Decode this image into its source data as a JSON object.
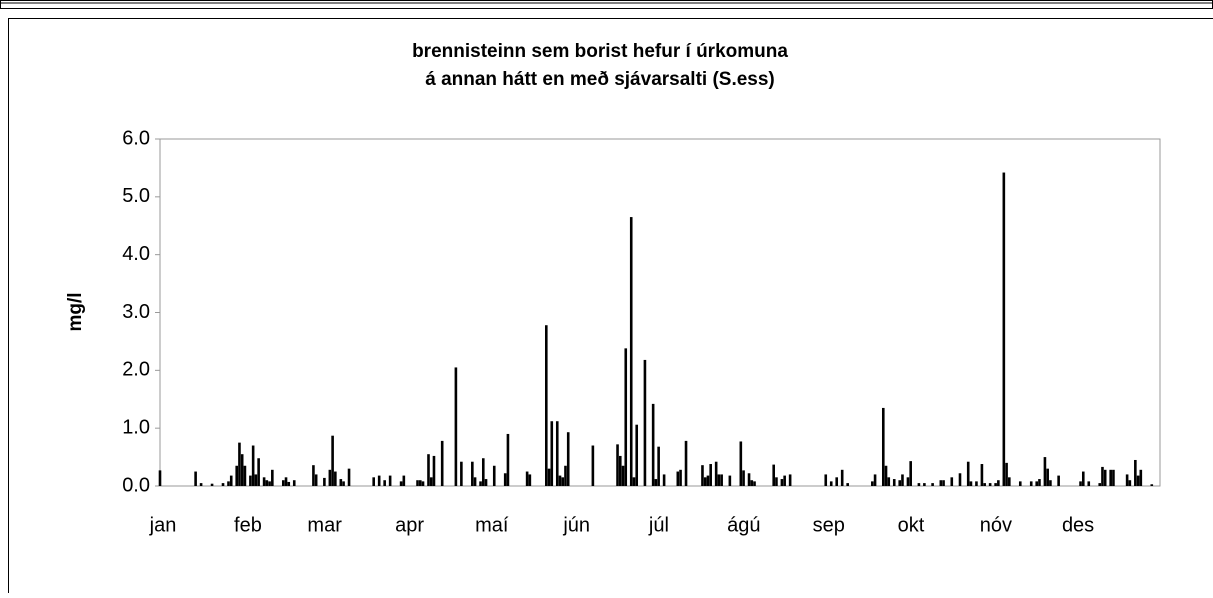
{
  "chart_data": {
    "type": "bar",
    "title": [
      "brennisteinn sem borist hefur í úrkomuna",
      "á annan hátt en með sjávarsalti (S.ess)"
    ],
    "y_label": "mg/l",
    "color": "#000000",
    "x": [
      0,
      13,
      15,
      19,
      23,
      25,
      26,
      28,
      29,
      30,
      31,
      33,
      34,
      35,
      36,
      38,
      39,
      40,
      41,
      45,
      46,
      47,
      49,
      56,
      57,
      60,
      62,
      63,
      64,
      66,
      67,
      69,
      78,
      80,
      82,
      84,
      88,
      89,
      94,
      95,
      96,
      98,
      99,
      100,
      103,
      108,
      110,
      114,
      115,
      117,
      118,
      119,
      122,
      126,
      127,
      134,
      135,
      141,
      142,
      143,
      145,
      146,
      147,
      148,
      149,
      158,
      167,
      168,
      169,
      170,
      172,
      173,
      174,
      177,
      180,
      181,
      182,
      184,
      189,
      190,
      192,
      198,
      199,
      200,
      201,
      203,
      204,
      205,
      208,
      212,
      213,
      215,
      216,
      217,
      224,
      225,
      227,
      228,
      230,
      243,
      245,
      247,
      249,
      251,
      260,
      261,
      264,
      265,
      266,
      268,
      270,
      271,
      273,
      274,
      277,
      279,
      282,
      285,
      286,
      289,
      292,
      295,
      296,
      298,
      300,
      301,
      303,
      305,
      306,
      308,
      309,
      310,
      314,
      318,
      320,
      321,
      323,
      324,
      325,
      328,
      336,
      337,
      339,
      343,
      344,
      345,
      347,
      348,
      353,
      354,
      356,
      357,
      358,
      362
    ],
    "values": [
      0.27,
      0.25,
      0.05,
      0.04,
      0.05,
      0.08,
      0.18,
      0.35,
      0.75,
      0.55,
      0.35,
      0.18,
      0.7,
      0.2,
      0.48,
      0.15,
      0.1,
      0.08,
      0.28,
      0.1,
      0.15,
      0.07,
      0.1,
      0.36,
      0.2,
      0.14,
      0.28,
      0.87,
      0.25,
      0.12,
      0.08,
      0.3,
      0.15,
      0.18,
      0.1,
      0.18,
      0.08,
      0.18,
      0.1,
      0.1,
      0.08,
      0.55,
      0.15,
      0.52,
      0.78,
      2.05,
      0.42,
      0.42,
      0.15,
      0.08,
      0.48,
      0.12,
      0.35,
      0.22,
      0.9,
      0.25,
      0.2,
      2.78,
      0.3,
      1.12,
      1.12,
      0.18,
      0.15,
      0.35,
      0.93,
      0.7,
      0.72,
      0.52,
      0.35,
      2.38,
      4.65,
      0.15,
      1.06,
      2.18,
      1.42,
      0.12,
      0.68,
      0.2,
      0.25,
      0.28,
      0.78,
      0.36,
      0.15,
      0.18,
      0.38,
      0.42,
      0.2,
      0.2,
      0.18,
      0.77,
      0.27,
      0.22,
      0.1,
      0.08,
      0.37,
      0.15,
      0.12,
      0.18,
      0.2,
      0.2,
      0.08,
      0.15,
      0.28,
      0.05,
      0.08,
      0.2,
      1.35,
      0.35,
      0.15,
      0.12,
      0.1,
      0.2,
      0.15,
      0.43,
      0.05,
      0.05,
      0.05,
      0.1,
      0.1,
      0.15,
      0.22,
      0.42,
      0.08,
      0.08,
      0.38,
      0.05,
      0.05,
      0.05,
      0.1,
      5.42,
      0.4,
      0.15,
      0.08,
      0.08,
      0.08,
      0.12,
      0.5,
      0.3,
      0.1,
      0.18,
      0.08,
      0.25,
      0.08,
      0.05,
      0.33,
      0.28,
      0.28,
      0.28,
      0.2,
      0.1,
      0.45,
      0.18,
      0.28,
      0.03
    ],
    "xlim": [
      0,
      365
    ],
    "xticks": [
      {
        "value": 0,
        "label": "jan"
      },
      {
        "value": 31,
        "label": "feb"
      },
      {
        "value": 59,
        "label": "mar"
      },
      {
        "value": 90,
        "label": "apr"
      },
      {
        "value": 120,
        "label": "maí"
      },
      {
        "value": 151,
        "label": "jún"
      },
      {
        "value": 181,
        "label": "júl"
      },
      {
        "value": 212,
        "label": "ágú"
      },
      {
        "value": 243,
        "label": "sep"
      },
      {
        "value": 273,
        "label": "okt"
      },
      {
        "value": 304,
        "label": "nóv"
      },
      {
        "value": 334,
        "label": "des"
      }
    ],
    "ylim": [
      0,
      6
    ],
    "yticks": [
      {
        "value": 0,
        "label": "0.0"
      },
      {
        "value": 1,
        "label": "1.0"
      },
      {
        "value": 2,
        "label": "2.0"
      },
      {
        "value": 3,
        "label": "3.0"
      },
      {
        "value": 4,
        "label": "4.0"
      },
      {
        "value": 5,
        "label": "5.0"
      },
      {
        "value": 6,
        "label": "6.0"
      }
    ],
    "grid": false
  }
}
